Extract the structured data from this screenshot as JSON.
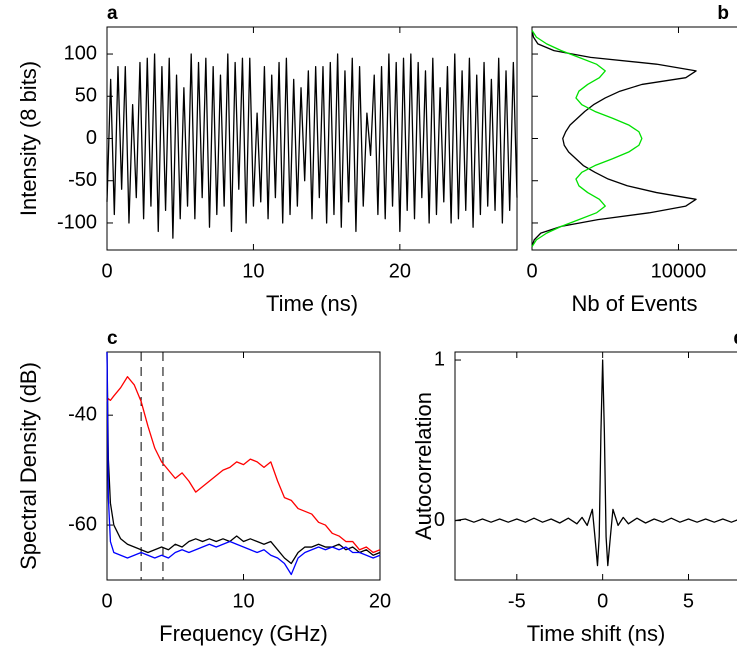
{
  "chart_data": [
    {
      "type": "line",
      "label": "a",
      "xlabel": "Time (ns)",
      "ylabel": "Intensity (8 bits)",
      "xlim": [
        0,
        28
      ],
      "ylim": [
        -132,
        132
      ],
      "xticks": [
        0,
        10,
        20
      ],
      "yticks": [
        -100,
        -50,
        0,
        50,
        100
      ],
      "x": [
        0,
        0.25,
        0.5,
        0.75,
        1,
        1.25,
        1.5,
        1.75,
        2,
        2.25,
        2.5,
        2.75,
        3,
        3.25,
        3.5,
        3.75,
        4,
        4.25,
        4.5,
        4.75,
        5,
        5.25,
        5.5,
        5.75,
        6,
        6.25,
        6.5,
        6.75,
        7,
        7.25,
        7.5,
        7.75,
        8,
        8.25,
        8.5,
        8.75,
        9,
        9.25,
        9.5,
        9.75,
        10,
        10.25,
        10.5,
        10.75,
        11,
        11.25,
        11.5,
        11.75,
        12,
        12.25,
        12.5,
        12.75,
        13,
        13.25,
        13.5,
        13.75,
        14,
        14.25,
        14.5,
        14.75,
        15,
        15.25,
        15.5,
        15.75,
        16,
        16.25,
        16.5,
        16.75,
        17,
        17.25,
        17.5,
        17.75,
        18,
        18.25,
        18.5,
        18.75,
        19,
        19.25,
        19.5,
        19.75,
        20,
        20.25,
        20.5,
        20.75,
        21,
        21.25,
        21.5,
        21.75,
        22,
        22.25,
        22.5,
        22.75,
        23,
        23.25,
        23.5,
        23.75,
        24,
        24.25,
        24.5,
        24.75,
        25,
        25.25,
        25.5,
        25.75,
        26,
        26.25,
        26.5,
        26.75,
        27,
        27.25,
        27.5,
        27.75,
        28
      ],
      "series": [
        {
          "color": "#000000",
          "values": [
            -75,
            70,
            -90,
            85,
            -60,
            85,
            -100,
            40,
            -70,
            90,
            -95,
            95,
            -80,
            100,
            -110,
            85,
            -85,
            95,
            -118,
            75,
            -95,
            60,
            -80,
            100,
            -95,
            90,
            -70,
            95,
            -105,
            85,
            -90,
            75,
            -80,
            100,
            -110,
            90,
            -60,
            95,
            -100,
            95,
            -80,
            30,
            -75,
            85,
            -95,
            75,
            -70,
            90,
            -100,
            95,
            -90,
            70,
            -80,
            60,
            -50,
            80,
            -95,
            85,
            -70,
            85,
            -100,
            90,
            -90,
            100,
            -105,
            80,
            -75,
            95,
            -110,
            85,
            -80,
            30,
            -20,
            75,
            -90,
            85,
            -95,
            100,
            -80,
            90,
            -110,
            95,
            -85,
            100,
            -95,
            90,
            -70,
            80,
            -100,
            95,
            -90,
            60,
            -75,
            85,
            -100,
            100,
            -95,
            80,
            -85,
            95,
            -105,
            75,
            -90,
            90,
            -80,
            70,
            -85,
            95,
            -100,
            80,
            -85,
            90,
            -70
          ]
        }
      ]
    },
    {
      "type": "line",
      "orientation": "horizontal",
      "label": "b",
      "xlabel": "Nb of Events",
      "xlim": [
        0,
        14200
      ],
      "ylim": [
        -132,
        132
      ],
      "xticks": [
        0,
        10000
      ],
      "yticks": [
        -100,
        -50,
        0,
        50,
        100
      ],
      "ytick_labels": false,
      "y": [
        -128,
        -120,
        -112,
        -104,
        -96,
        -88,
        -80,
        -72,
        -64,
        -56,
        -48,
        -40,
        -32,
        -24,
        -16,
        -8,
        0,
        8,
        16,
        24,
        32,
        40,
        48,
        56,
        64,
        72,
        80,
        88,
        96,
        104,
        112,
        120,
        128
      ],
      "series": [
        {
          "color": "#000000",
          "values": [
            0,
            150,
            600,
            2000,
            4500,
            8000,
            10500,
            11200,
            8500,
            6500,
            5200,
            4300,
            3500,
            3000,
            2500,
            2200,
            2100,
            2300,
            2600,
            3100,
            3600,
            4200,
            5000,
            6000,
            7500,
            10500,
            11200,
            8500,
            4000,
            1500,
            400,
            100,
            0
          ]
        },
        {
          "color": "#00e000",
          "values": [
            0,
            300,
            1000,
            2000,
            3200,
            4400,
            5000,
            4600,
            3800,
            3200,
            3000,
            3400,
            4300,
            5500,
            6600,
            7300,
            7500,
            7300,
            6600,
            5500,
            4300,
            3400,
            3000,
            3200,
            3800,
            4600,
            5000,
            4400,
            3200,
            2000,
            1000,
            300,
            0
          ]
        }
      ]
    },
    {
      "type": "line",
      "label": "c",
      "xlabel": "Frequency (GHz)",
      "ylabel": "Spectral Density (dB)",
      "xlim": [
        0,
        20
      ],
      "ylim": [
        -70,
        -28.5
      ],
      "xticks": [
        0,
        10,
        20
      ],
      "yticks": [
        -60,
        -40
      ],
      "vlines": [
        2.5,
        4.1
      ],
      "x": [
        0,
        0.1,
        0.25,
        0.5,
        1,
        1.5,
        2,
        2.5,
        3,
        3.5,
        4,
        4.5,
        5,
        5.5,
        6,
        6.5,
        7,
        7.5,
        8,
        8.5,
        9,
        9.5,
        10,
        10.5,
        11,
        11.5,
        12,
        12.5,
        13,
        13.5,
        14,
        14.5,
        15,
        15.5,
        16,
        16.5,
        17,
        17.5,
        18,
        18.5,
        19,
        19.5,
        20
      ],
      "series": [
        {
          "color": "#ff0000",
          "values": [
            -37.5,
            -37,
            -37.3,
            -36.5,
            -35,
            -33,
            -34.5,
            -37.5,
            -42,
            -46,
            -48.5,
            -50,
            -51.5,
            -50.5,
            -52,
            -54,
            -53,
            -52,
            -51,
            -50,
            -49.5,
            -48.5,
            -49,
            -48,
            -48.5,
            -49.5,
            -48.5,
            -52,
            -55,
            -55.5,
            -57,
            -57.5,
            -58,
            -59.5,
            -60,
            -61.5,
            -62,
            -63,
            -63,
            -64.5,
            -64,
            -65,
            -64.5
          ]
        },
        {
          "color": "#000000",
          "values": [
            -28.5,
            -48,
            -56,
            -60,
            -62.5,
            -63.5,
            -64,
            -64.5,
            -65,
            -64.5,
            -64,
            -64.5,
            -63.5,
            -64,
            -63,
            -62.5,
            -63,
            -62.5,
            -63,
            -62.5,
            -63,
            -62,
            -63,
            -62.5,
            -63,
            -63.5,
            -63,
            -64.5,
            -66,
            -67,
            -65,
            -64,
            -64,
            -63.5,
            -64,
            -64,
            -63.5,
            -64.5,
            -64,
            -65,
            -64.5,
            -65.5,
            -65
          ]
        },
        {
          "color": "#0000ff",
          "values": [
            -28.5,
            -55,
            -63,
            -65,
            -65.5,
            -66,
            -65.5,
            -65,
            -65.5,
            -66,
            -65.5,
            -66,
            -65,
            -64.5,
            -65,
            -64.5,
            -64,
            -63.5,
            -64,
            -63.5,
            -63,
            -63.5,
            -64,
            -64.5,
            -65,
            -64.5,
            -65.5,
            -66,
            -67,
            -69,
            -66,
            -65,
            -64.5,
            -64,
            -64.5,
            -64,
            -64.5,
            -64,
            -65,
            -65,
            -65.5,
            -66,
            -65.5
          ]
        }
      ]
    },
    {
      "type": "line",
      "label": "d",
      "xlabel": "Time shift (ns)",
      "ylabel": "Autocorrelation",
      "xlim": [
        -8.6,
        8
      ],
      "ylim": [
        -0.37,
        1.05
      ],
      "xticks": [
        -5,
        0,
        5
      ],
      "yticks": [
        0,
        1
      ],
      "x": [
        -8.6,
        -8,
        -7.5,
        -7,
        -6.5,
        -6,
        -5.5,
        -5,
        -4.5,
        -4,
        -3.5,
        -3,
        -2.5,
        -2,
        -1.5,
        -1.2,
        -0.9,
        -0.75,
        -0.6,
        -0.45,
        -0.3,
        -0.2,
        -0.1,
        0,
        0.1,
        0.2,
        0.3,
        0.45,
        0.6,
        0.75,
        0.9,
        1.2,
        1.5,
        2,
        2.5,
        3,
        3.5,
        4,
        4.5,
        5,
        5.5,
        6,
        6.5,
        7,
        7.5,
        8
      ],
      "series": [
        {
          "color": "#000000",
          "values": [
            0,
            0.01,
            -0.01,
            0.01,
            -0.01,
            0.01,
            -0.01,
            0.01,
            -0.01,
            0.015,
            -0.01,
            0.01,
            -0.015,
            0.015,
            -0.02,
            0.02,
            -0.03,
            0.02,
            0.07,
            -0.1,
            -0.28,
            -0.1,
            0.55,
            1,
            0.55,
            -0.1,
            -0.28,
            -0.1,
            0.07,
            0.02,
            -0.03,
            0.02,
            -0.02,
            0.015,
            -0.015,
            0.01,
            -0.01,
            0.015,
            -0.01,
            0.01,
            -0.01,
            0.01,
            -0.01,
            0.01,
            -0.01,
            0.01
          ]
        }
      ]
    }
  ]
}
